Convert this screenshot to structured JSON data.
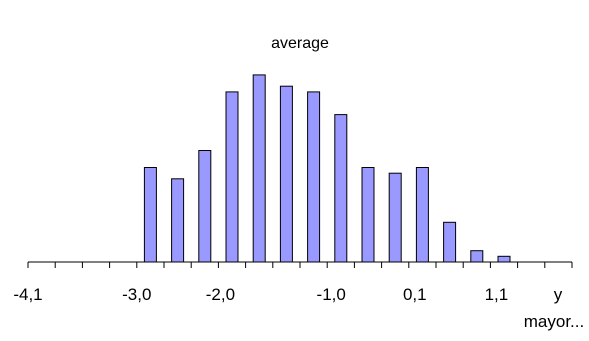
{
  "chart_data": {
    "type": "bar",
    "title": "average",
    "xlabel": "",
    "ylabel": "",
    "grid": false,
    "legend": "none",
    "bar_color": "#9999ff",
    "ylim": [
      0,
      100
    ],
    "tick_labels": [
      "-4,1",
      "-3,0",
      "-2,0",
      "-1,0",
      "0,1",
      "1,1",
      "y",
      "mayor..."
    ],
    "categories": [
      "-4,1",
      "",
      "",
      "",
      "-3,0",
      "",
      "",
      "",
      "-2,0",
      "",
      "",
      "",
      "-1,0",
      "",
      "",
      "",
      "0,1",
      "",
      "",
      "",
      "1,1",
      "",
      "",
      "",
      "y mayor..."
    ],
    "values": [
      0,
      0,
      0,
      0,
      0,
      0,
      0,
      0,
      0,
      0,
      0,
      0,
      0,
      0,
      0,
      0,
      0,
      0,
      0,
      0,
      0,
      0,
      0,
      0,
      0
    ],
    "bar_values": [
      50,
      44,
      59,
      90,
      99,
      93,
      90,
      78,
      50,
      47,
      50,
      21,
      6,
      3
    ]
  }
}
